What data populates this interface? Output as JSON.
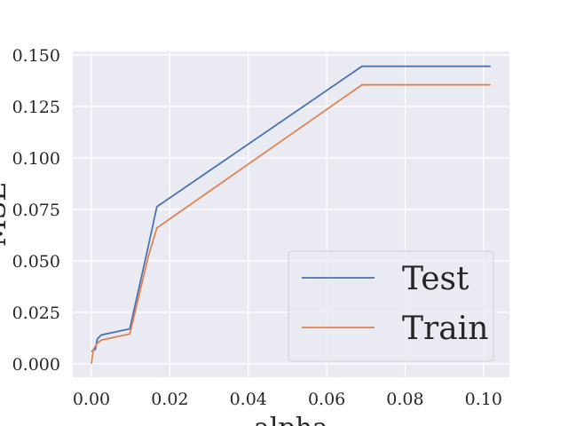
{
  "chart_data": {
    "type": "line",
    "x_label": "alpha",
    "y_label": "MSE",
    "series": [
      {
        "name": "Test",
        "color": "#4c72b0",
        "x": [
          0,
          0.001,
          0.0015,
          0.0025,
          0.0098,
          0.0145,
          0.0167,
          0.069,
          0.1018
        ],
        "values": [
          0.006,
          0.007,
          0.012,
          0.014,
          0.017,
          0.057,
          0.0763,
          0.1445,
          0.1445
        ]
      },
      {
        "name": "Train",
        "color": "#dd8452",
        "x": [
          0,
          0.0005,
          0.0015,
          0.0025,
          0.0098,
          0.0145,
          0.0167,
          0.069,
          0.1018
        ],
        "values": [
          0.0,
          0.007,
          0.01,
          0.0115,
          0.0145,
          0.052,
          0.066,
          0.1355,
          0.1355
        ]
      }
    ],
    "xlim": [
      -0.00475,
      0.1066
    ],
    "ylim": [
      -0.0065,
      0.1517
    ],
    "xticks": [
      {
        "value": 0,
        "label": "0.00"
      },
      {
        "value": 0.02,
        "label": "0.02"
      },
      {
        "value": 0.04,
        "label": "0.04"
      },
      {
        "value": 0.06,
        "label": "0.06"
      },
      {
        "value": 0.08,
        "label": "0.08"
      },
      {
        "value": 0.1,
        "label": "0.10"
      }
    ],
    "yticks": [
      {
        "value": 0,
        "label": "0.000"
      },
      {
        "value": 0.025,
        "label": "0.025"
      },
      {
        "value": 0.05,
        "label": "0.050"
      },
      {
        "value": 0.075,
        "label": "0.075"
      },
      {
        "value": 0.1,
        "label": "0.100"
      },
      {
        "value": 0.125,
        "label": "0.125"
      },
      {
        "value": 0.15,
        "label": "0.150"
      }
    ],
    "grid": true,
    "legend": "lower right"
  }
}
